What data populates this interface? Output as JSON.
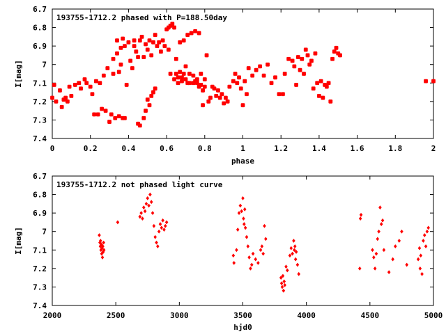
{
  "chart_data": [
    {
      "type": "scatter",
      "title": "193755-1712.2 phased with P=188.50day",
      "xlabel": "phase",
      "ylabel": "I[mag]",
      "xlim": [
        0,
        2
      ],
      "ylim": [
        7.4,
        6.7
      ],
      "y_inverted": true,
      "xticks": [
        0,
        0.2,
        0.4,
        0.6,
        0.8,
        1,
        1.2,
        1.4,
        1.6,
        1.8,
        2
      ],
      "xtick_labels": [
        "0",
        "0.2",
        "0.4",
        "0.6",
        "0.8",
        "1",
        "1.2",
        "1.4",
        "1.6",
        "1.8",
        "2"
      ],
      "yticks": [
        6.7,
        6.8,
        6.9,
        7,
        7.1,
        7.2,
        7.3,
        7.4
      ],
      "ytick_labels": [
        "6.7",
        "6.8",
        "6.9",
        "7",
        "7.1",
        "7.2",
        "7.3",
        "7.4"
      ],
      "marker_color": "#ff0000",
      "grid": false,
      "points": [
        [
          0.0,
          7.18
        ],
        [
          0.01,
          7.11
        ],
        [
          0.02,
          7.2
        ],
        [
          0.04,
          7.14
        ],
        [
          0.05,
          7.23
        ],
        [
          0.06,
          7.19
        ],
        [
          0.07,
          7.18
        ],
        [
          0.08,
          7.2
        ],
        [
          0.09,
          7.12
        ],
        [
          0.1,
          7.17
        ],
        [
          0.12,
          7.11
        ],
        [
          0.14,
          7.1
        ],
        [
          0.15,
          7.13
        ],
        [
          0.17,
          7.08
        ],
        [
          0.18,
          7.1
        ],
        [
          0.2,
          7.12
        ],
        [
          0.21,
          7.16
        ],
        [
          0.22,
          7.27
        ],
        [
          0.23,
          7.09
        ],
        [
          0.24,
          7.27
        ],
        [
          0.25,
          7.1
        ],
        [
          0.26,
          7.24
        ],
        [
          0.27,
          7.06
        ],
        [
          0.28,
          7.25
        ],
        [
          0.29,
          7.02
        ],
        [
          0.3,
          7.31
        ],
        [
          0.31,
          7.27
        ],
        [
          0.32,
          6.97
        ],
        [
          0.32,
          7.05
        ],
        [
          0.33,
          7.29
        ],
        [
          0.34,
          6.87
        ],
        [
          0.34,
          6.94
        ],
        [
          0.35,
          7.04
        ],
        [
          0.35,
          7.28
        ],
        [
          0.36,
          6.91
        ],
        [
          0.36,
          7.0
        ],
        [
          0.37,
          6.86
        ],
        [
          0.37,
          7.29
        ],
        [
          0.38,
          6.9
        ],
        [
          0.38,
          7.29
        ],
        [
          0.39,
          7.11
        ],
        [
          0.4,
          6.88
        ],
        [
          0.41,
          6.98
        ],
        [
          0.42,
          7.02
        ],
        [
          0.43,
          6.9
        ],
        [
          0.43,
          6.87
        ],
        [
          0.44,
          6.93
        ],
        [
          0.45,
          6.96
        ],
        [
          0.45,
          7.32
        ],
        [
          0.46,
          7.33
        ],
        [
          0.46,
          6.87
        ],
        [
          0.47,
          6.85
        ],
        [
          0.48,
          7.29
        ],
        [
          0.48,
          6.96
        ],
        [
          0.49,
          7.25
        ],
        [
          0.49,
          6.89
        ],
        [
          0.5,
          7.19
        ],
        [
          0.5,
          6.92
        ],
        [
          0.51,
          7.22
        ],
        [
          0.51,
          6.87
        ],
        [
          0.52,
          6.95
        ],
        [
          0.52,
          7.17
        ],
        [
          0.53,
          6.88
        ],
        [
          0.53,
          7.15
        ],
        [
          0.54,
          6.84
        ],
        [
          0.54,
          7.13
        ],
        [
          0.55,
          6.9
        ],
        [
          0.56,
          6.88
        ],
        [
          0.57,
          6.93
        ],
        [
          0.58,
          6.87
        ],
        [
          0.59,
          6.9
        ],
        [
          0.6,
          6.81
        ],
        [
          0.61,
          6.92
        ],
        [
          0.61,
          6.8
        ],
        [
          0.62,
          6.79
        ],
        [
          0.62,
          7.05
        ],
        [
          0.63,
          6.78
        ],
        [
          0.64,
          6.8
        ],
        [
          0.64,
          7.08
        ],
        [
          0.65,
          7.05
        ],
        [
          0.65,
          6.97
        ],
        [
          0.66,
          7.07
        ],
        [
          0.66,
          7.1
        ],
        [
          0.67,
          6.88
        ],
        [
          0.67,
          7.04
        ],
        [
          0.68,
          7.07
        ],
        [
          0.68,
          7.09
        ],
        [
          0.69,
          6.87
        ],
        [
          0.69,
          7.05
        ],
        [
          0.7,
          7.01
        ],
        [
          0.7,
          7.08
        ],
        [
          0.71,
          7.1
        ],
        [
          0.71,
          6.84
        ],
        [
          0.72,
          7.05
        ],
        [
          0.72,
          7.1
        ],
        [
          0.73,
          6.83
        ],
        [
          0.74,
          7.06
        ],
        [
          0.74,
          7.1
        ],
        [
          0.75,
          6.82
        ],
        [
          0.75,
          7.09
        ],
        [
          0.76,
          7.1
        ],
        [
          0.76,
          7.08
        ],
        [
          0.77,
          6.83
        ],
        [
          0.77,
          7.12
        ],
        [
          0.78,
          7.05
        ],
        [
          0.78,
          7.11
        ],
        [
          0.79,
          7.14
        ],
        [
          0.79,
          7.22
        ],
        [
          0.8,
          7.08
        ],
        [
          0.8,
          7.12
        ],
        [
          0.81,
          6.95
        ],
        [
          0.82,
          7.2
        ],
        [
          0.83,
          7.18
        ],
        [
          0.84,
          7.12
        ],
        [
          0.85,
          7.13
        ],
        [
          0.86,
          7.17
        ],
        [
          0.87,
          7.14
        ],
        [
          0.88,
          7.18
        ],
        [
          0.89,
          7.16
        ],
        [
          0.9,
          7.21
        ],
        [
          0.91,
          7.18
        ],
        [
          0.92,
          7.2
        ],
        [
          0.93,
          7.12
        ],
        [
          0.95,
          7.09
        ],
        [
          0.96,
          7.05
        ],
        [
          0.97,
          7.1
        ],
        [
          0.98,
          7.07
        ],
        [
          0.99,
          7.13
        ],
        [
          1.0,
          7.22
        ],
        [
          1.01,
          7.09
        ],
        [
          1.02,
          7.16
        ],
        [
          1.03,
          7.02
        ],
        [
          1.05,
          7.06
        ],
        [
          1.07,
          7.03
        ],
        [
          1.09,
          7.01
        ],
        [
          1.11,
          7.06
        ],
        [
          1.13,
          7.0
        ],
        [
          1.15,
          7.1
        ],
        [
          1.17,
          7.07
        ],
        [
          1.19,
          7.16
        ],
        [
          1.21,
          7.16
        ],
        [
          1.22,
          7.05
        ],
        [
          1.24,
          6.97
        ],
        [
          1.26,
          6.98
        ],
        [
          1.27,
          7.01
        ],
        [
          1.28,
          7.11
        ],
        [
          1.29,
          6.96
        ],
        [
          1.3,
          7.03
        ],
        [
          1.31,
          6.97
        ],
        [
          1.32,
          7.05
        ],
        [
          1.33,
          6.92
        ],
        [
          1.34,
          6.95
        ],
        [
          1.35,
          7.0
        ],
        [
          1.36,
          6.98
        ],
        [
          1.37,
          7.13
        ],
        [
          1.38,
          6.94
        ],
        [
          1.39,
          7.1
        ],
        [
          1.4,
          7.17
        ],
        [
          1.41,
          7.09
        ],
        [
          1.42,
          7.18
        ],
        [
          1.43,
          7.11
        ],
        [
          1.44,
          7.12
        ],
        [
          1.45,
          7.1
        ],
        [
          1.46,
          7.2
        ],
        [
          1.47,
          6.97
        ],
        [
          1.48,
          6.93
        ],
        [
          1.49,
          6.91
        ],
        [
          1.5,
          6.94
        ],
        [
          1.51,
          6.95
        ],
        [
          1.96,
          7.09
        ],
        [
          2.0,
          7.09
        ]
      ]
    },
    {
      "type": "scatter",
      "title": "193755-1712.2 not phased light curve",
      "xlabel": "hjd0",
      "ylabel": "I[mag]",
      "xlim": [
        2000,
        5000
      ],
      "ylim": [
        7.4,
        6.7
      ],
      "y_inverted": true,
      "xticks": [
        2000,
        2500,
        3000,
        3500,
        4000,
        4500,
        5000
      ],
      "xtick_labels": [
        "2000",
        "2500",
        "3000",
        "3500",
        "4000",
        "4500",
        "5000"
      ],
      "yticks": [
        6.7,
        6.8,
        6.9,
        7,
        7.1,
        7.2,
        7.3,
        7.4
      ],
      "ytick_labels": [
        "6.7",
        "6.8",
        "6.9",
        "7",
        "7.1",
        "7.2",
        "7.3",
        "7.4"
      ],
      "marker_color": "#ff0000",
      "grid": false,
      "points": [
        [
          2370,
          7.02
        ],
        [
          2375,
          7.06
        ],
        [
          2378,
          7.08
        ],
        [
          2380,
          7.05
        ],
        [
          2383,
          7.1
        ],
        [
          2386,
          7.07
        ],
        [
          2389,
          7.12
        ],
        [
          2392,
          7.09
        ],
        [
          2395,
          7.14
        ],
        [
          2398,
          7.08
        ],
        [
          2401,
          7.11
        ],
        [
          2404,
          7.06
        ],
        [
          2407,
          7.1
        ],
        [
          2515,
          6.95
        ],
        [
          2690,
          6.92
        ],
        [
          2700,
          6.9
        ],
        [
          2710,
          6.93
        ],
        [
          2720,
          6.87
        ],
        [
          2730,
          6.89
        ],
        [
          2740,
          6.85
        ],
        [
          2750,
          6.82
        ],
        [
          2760,
          6.86
        ],
        [
          2770,
          6.8
        ],
        [
          2780,
          6.84
        ],
        [
          2790,
          6.9
        ],
        [
          2800,
          6.97
        ],
        [
          2810,
          7.03
        ],
        [
          2820,
          7.06
        ],
        [
          2830,
          7.08
        ],
        [
          2840,
          7.0
        ],
        [
          2850,
          6.96
        ],
        [
          2860,
          6.98
        ],
        [
          2870,
          6.94
        ],
        [
          2880,
          6.99
        ],
        [
          2890,
          6.97
        ],
        [
          2900,
          6.95
        ],
        [
          3425,
          7.13
        ],
        [
          3430,
          7.17
        ],
        [
          3450,
          7.1
        ],
        [
          3460,
          6.99
        ],
        [
          3470,
          6.9
        ],
        [
          3480,
          6.86
        ],
        [
          3490,
          6.89
        ],
        [
          3500,
          6.82
        ],
        [
          3505,
          6.93
        ],
        [
          3510,
          6.96
        ],
        [
          3515,
          6.88
        ],
        [
          3520,
          6.98
        ],
        [
          3530,
          7.03
        ],
        [
          3540,
          7.08
        ],
        [
          3550,
          7.14
        ],
        [
          3560,
          7.2
        ],
        [
          3570,
          7.18
        ],
        [
          3580,
          7.12
        ],
        [
          3600,
          7.15
        ],
        [
          3620,
          7.17
        ],
        [
          3640,
          7.1
        ],
        [
          3650,
          7.08
        ],
        [
          3660,
          7.12
        ],
        [
          3670,
          6.97
        ],
        [
          3680,
          7.04
        ],
        [
          3800,
          7.25
        ],
        [
          3805,
          7.28
        ],
        [
          3810,
          7.3
        ],
        [
          3815,
          7.24
        ],
        [
          3820,
          7.32
        ],
        [
          3825,
          7.27
        ],
        [
          3830,
          7.29
        ],
        [
          3840,
          7.19
        ],
        [
          3850,
          7.21
        ],
        [
          3870,
          7.13
        ],
        [
          3880,
          7.09
        ],
        [
          3890,
          7.12
        ],
        [
          3900,
          7.05
        ],
        [
          3905,
          7.1
        ],
        [
          3910,
          7.08
        ],
        [
          3915,
          7.15
        ],
        [
          3920,
          7.11
        ],
        [
          3930,
          7.18
        ],
        [
          3940,
          7.23
        ],
        [
          4420,
          7.2
        ],
        [
          4425,
          6.93
        ],
        [
          4430,
          6.91
        ],
        [
          4520,
          7.1
        ],
        [
          4530,
          7.14
        ],
        [
          4540,
          7.2
        ],
        [
          4550,
          7.12
        ],
        [
          4560,
          7.04
        ],
        [
          4570,
          7.0
        ],
        [
          4580,
          6.87
        ],
        [
          4590,
          6.96
        ],
        [
          4600,
          6.94
        ],
        [
          4610,
          7.1
        ],
        [
          4650,
          7.22
        ],
        [
          4680,
          7.15
        ],
        [
          4700,
          7.08
        ],
        [
          4730,
          7.05
        ],
        [
          4750,
          7.0
        ],
        [
          4790,
          7.18
        ],
        [
          4880,
          7.15
        ],
        [
          4890,
          7.09
        ],
        [
          4895,
          7.2
        ],
        [
          4900,
          7.13
        ],
        [
          4910,
          7.23
        ],
        [
          4920,
          7.05
        ],
        [
          4930,
          7.02
        ],
        [
          4940,
          7.08
        ],
        [
          4950,
          7.0
        ],
        [
          4960,
          6.98
        ]
      ]
    }
  ]
}
